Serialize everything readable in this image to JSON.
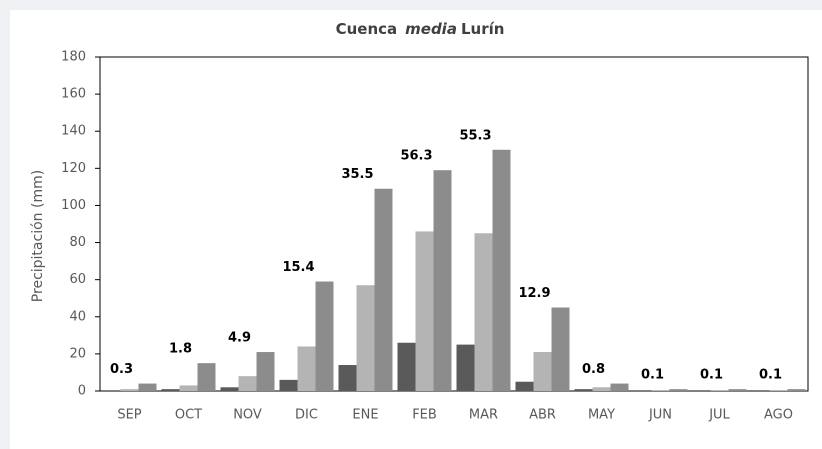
{
  "chart_data": {
    "type": "bar",
    "title": {
      "prefix": "Cuenca",
      "emphasis": "media",
      "suffix": "Lurín"
    },
    "y_label": "Precipitación (mm)",
    "categories": [
      "SEP",
      "OCT",
      "NOV",
      "DIC",
      "ENE",
      "FEB",
      "MAR",
      "ABR",
      "MAY",
      "JUN",
      "JUL",
      "AGO"
    ],
    "series": [
      {
        "color": "#5a5a5a",
        "values": [
          0,
          1,
          2,
          6,
          14,
          26,
          25,
          5,
          1,
          0,
          0,
          0
        ]
      },
      {
        "color": "#b4b4b4",
        "values": [
          1,
          3,
          8,
          24,
          57,
          86,
          85,
          21,
          2,
          0.5,
          0.5,
          0.5
        ]
      },
      {
        "color": "#8c8c8c",
        "values": [
          4,
          15,
          21,
          59,
          109,
          119,
          130,
          45,
          4,
          1,
          1,
          1
        ]
      }
    ],
    "annotations": [
      0.3,
      1.8,
      4.9,
      15.4,
      35.5,
      56.3,
      55.3,
      12.9,
      0.8,
      0.1,
      0.1,
      0.1
    ],
    "ylim": [
      0,
      180
    ],
    "yticks": [
      0,
      20,
      40,
      60,
      80,
      100,
      120,
      140,
      160,
      180
    ],
    "grid": false
  }
}
